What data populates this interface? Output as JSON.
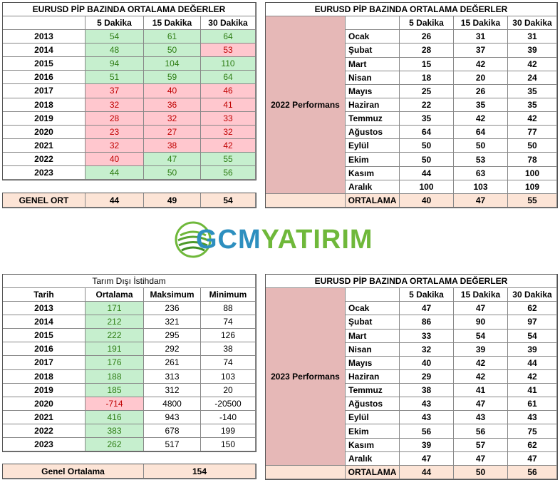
{
  "top_left": {
    "title": "EURUSD  PİP BAZINDA ORTALAMA DEĞERLER",
    "headers": [
      "",
      "5 Dakika",
      "15 Dakika",
      "30 Dakika"
    ],
    "rows": [
      {
        "year": "2013",
        "v": [
          "54",
          "61",
          "64"
        ]
      },
      {
        "year": "2014",
        "v": [
          "48",
          "50",
          "53"
        ]
      },
      {
        "year": "2015",
        "v": [
          "94",
          "104",
          "110"
        ]
      },
      {
        "year": "2016",
        "v": [
          "51",
          "59",
          "64"
        ]
      },
      {
        "year": "2017",
        "v": [
          "37",
          "40",
          "46"
        ]
      },
      {
        "year": "2018",
        "v": [
          "32",
          "36",
          "41"
        ]
      },
      {
        "year": "2019",
        "v": [
          "28",
          "32",
          "33"
        ]
      },
      {
        "year": "2020",
        "v": [
          "23",
          "27",
          "32"
        ]
      },
      {
        "year": "2021",
        "v": [
          "32",
          "38",
          "42"
        ]
      },
      {
        "year": "2022",
        "v": [
          "40",
          "47",
          "55"
        ]
      },
      {
        "year": "2023",
        "v": [
          "44",
          "50",
          "56"
        ]
      }
    ],
    "total": {
      "label": "GENEL ORT",
      "v": [
        "44",
        "49",
        "54"
      ]
    }
  },
  "top_right": {
    "title": "EURUSD  PİP BAZINDA ORTALAMA DEĞERLER",
    "headers": [
      "",
      "",
      "5 Dakika",
      "15 Dakika",
      "30 Dakika"
    ],
    "side_label": "2022 Performans",
    "rows": [
      {
        "month": "Ocak",
        "v": [
          "26",
          "31",
          "31"
        ]
      },
      {
        "month": "Şubat",
        "v": [
          "28",
          "37",
          "39"
        ]
      },
      {
        "month": "Mart",
        "v": [
          "15",
          "42",
          "42"
        ]
      },
      {
        "month": "Nisan",
        "v": [
          "18",
          "20",
          "24"
        ]
      },
      {
        "month": "Mayıs",
        "v": [
          "25",
          "26",
          "35"
        ]
      },
      {
        "month": "Haziran",
        "v": [
          "22",
          "35",
          "35"
        ]
      },
      {
        "month": "Temmuz",
        "v": [
          "35",
          "42",
          "42"
        ]
      },
      {
        "month": "Ağustos",
        "v": [
          "64",
          "64",
          "77"
        ]
      },
      {
        "month": "Eylül",
        "v": [
          "50",
          "50",
          "50"
        ]
      },
      {
        "month": "Ekim",
        "v": [
          "50",
          "53",
          "78"
        ]
      },
      {
        "month": "Kasım",
        "v": [
          "44",
          "63",
          "100"
        ]
      },
      {
        "month": "Aralık",
        "v": [
          "100",
          "103",
          "109"
        ]
      }
    ],
    "total": {
      "label": "ORTALAMA",
      "v": [
        "40",
        "47",
        "55"
      ]
    }
  },
  "logo": {
    "part1": "GCM",
    "part2": "YATIRIM"
  },
  "bottom_left": {
    "title": "Tarım Dışı İstihdam",
    "headers": [
      "Tarih",
      "Ortalama",
      "Maksimum",
      "Minimum"
    ],
    "rows": [
      {
        "year": "2013",
        "v": [
          "171",
          "236",
          "88"
        ]
      },
      {
        "year": "2014",
        "v": [
          "212",
          "321",
          "74"
        ]
      },
      {
        "year": "2015",
        "v": [
          "222",
          "295",
          "126"
        ]
      },
      {
        "year": "2016",
        "v": [
          "191",
          "292",
          "38"
        ]
      },
      {
        "year": "2017",
        "v": [
          "176",
          "261",
          "74"
        ]
      },
      {
        "year": "2018",
        "v": [
          "188",
          "313",
          "103"
        ]
      },
      {
        "year": "2019",
        "v": [
          "185",
          "312",
          "20"
        ]
      },
      {
        "year": "2020",
        "v": [
          "-714",
          "4800",
          "-20500"
        ]
      },
      {
        "year": "2021",
        "v": [
          "416",
          "943",
          "-140"
        ]
      },
      {
        "year": "2022",
        "v": [
          "383",
          "678",
          "199"
        ]
      },
      {
        "year": "2023",
        "v": [
          "262",
          "517",
          "150"
        ]
      }
    ],
    "total": {
      "label": "Genel Ortalama",
      "value": "154"
    }
  },
  "bottom_right": {
    "title": "EURUSD  PİP BAZINDA ORTALAMA DEĞERLER",
    "headers": [
      "",
      "",
      "5 Dakika",
      "15 Dakika",
      "30 Dakika"
    ],
    "side_label": "2023 Performans",
    "rows": [
      {
        "month": "Ocak",
        "v": [
          "47",
          "47",
          "62"
        ]
      },
      {
        "month": "Şubat",
        "v": [
          "86",
          "90",
          "97"
        ]
      },
      {
        "month": "Mart",
        "v": [
          "33",
          "54",
          "54"
        ]
      },
      {
        "month": "Nisan",
        "v": [
          "32",
          "39",
          "39"
        ]
      },
      {
        "month": "Mayıs",
        "v": [
          "40",
          "42",
          "44"
        ]
      },
      {
        "month": "Haziran",
        "v": [
          "29",
          "42",
          "42"
        ]
      },
      {
        "month": "Temmuz",
        "v": [
          "38",
          "41",
          "41"
        ]
      },
      {
        "month": "Ağustos",
        "v": [
          "43",
          "47",
          "61"
        ]
      },
      {
        "month": "Eylül",
        "v": [
          "43",
          "43",
          "43"
        ]
      },
      {
        "month": "Ekim",
        "v": [
          "56",
          "56",
          "75"
        ]
      },
      {
        "month": "Kasım",
        "v": [
          "39",
          "57",
          "62"
        ]
      },
      {
        "month": "Aralık",
        "v": [
          "47",
          "47",
          "47"
        ]
      }
    ],
    "total": {
      "label": "ORTALAMA",
      "v": [
        "44",
        "50",
        "56"
      ]
    }
  },
  "colors": {
    "good_fill": "#c6efce",
    "good_text": "#2e7d14",
    "bad_fill": "#ffc7ce",
    "bad_text": "#c00000",
    "total_fill": "#fce4d6",
    "side_fill": "#e6b8b7"
  }
}
